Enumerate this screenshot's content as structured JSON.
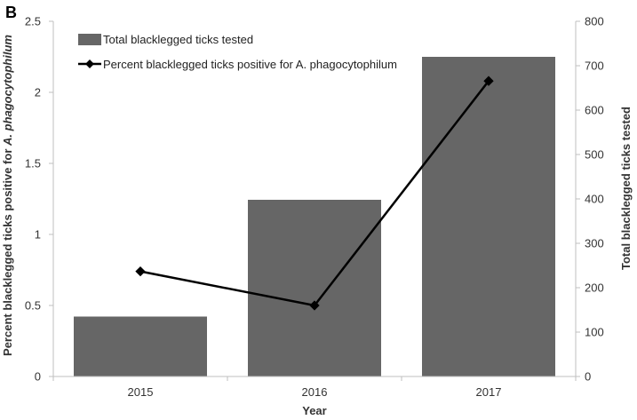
{
  "panel_label": "B",
  "chart_data": {
    "type": "bar",
    "categories": [
      "2015",
      "2016",
      "2017"
    ],
    "series": [
      {
        "name": "Total blacklegged ticks tested",
        "kind": "bar",
        "axis": "right",
        "values": [
          135,
          398,
          720
        ],
        "color": "#666666"
      },
      {
        "name": "Percent blacklegged ticks positive for A. phagocytophilum",
        "kind": "line",
        "axis": "left",
        "values": [
          0.74,
          0.5,
          2.08
        ],
        "color": "#000000"
      }
    ],
    "xlabel": "Year",
    "ylabel_left_prefix": "Percent blacklegged ticks positive for ",
    "ylabel_left_italic": "A. phagocytophilum",
    "ylabel_right": "Total blacklegged ticks tested",
    "ylim_left": [
      0,
      2.5
    ],
    "yticks_left": [
      "0",
      "0.5",
      "1",
      "1.5",
      "2",
      "2.5"
    ],
    "ylim_right": [
      0,
      800
    ],
    "yticks_right": [
      "0",
      "100",
      "200",
      "300",
      "400",
      "500",
      "600",
      "700",
      "800"
    ],
    "grid": false,
    "legend": "top-left"
  }
}
